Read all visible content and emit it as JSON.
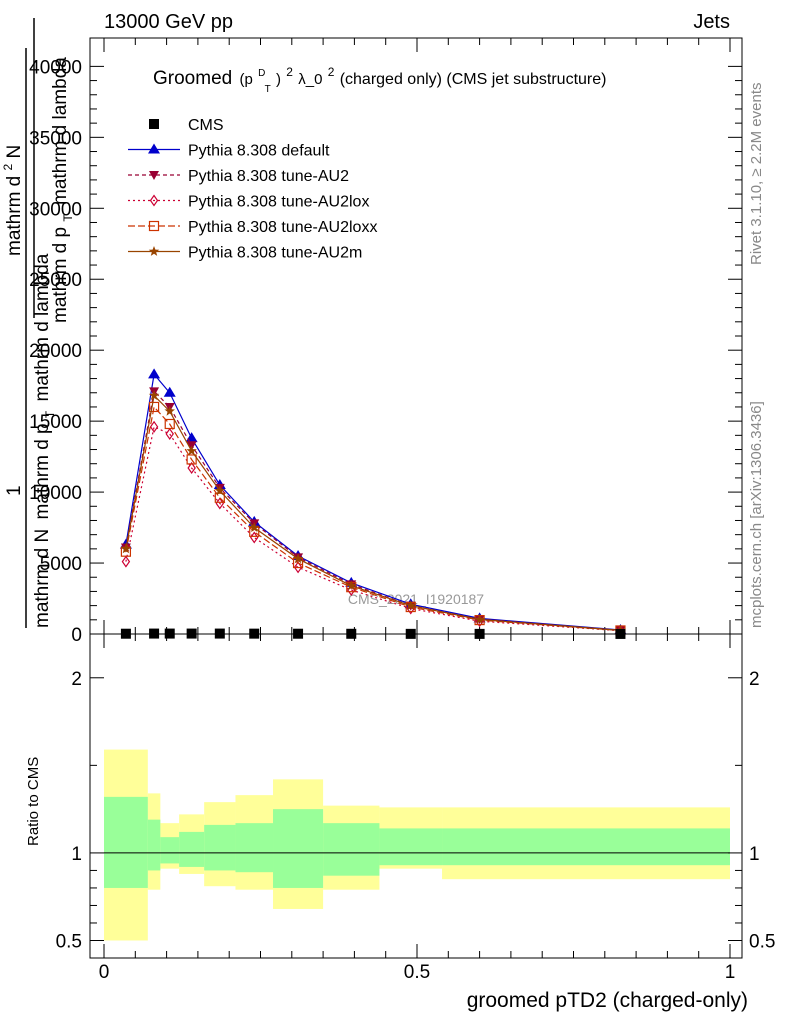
{
  "header": {
    "left": "13000 GeV pp",
    "right": "Jets"
  },
  "side_text": {
    "rivet": "Rivet 3.1.10, ≥ 2.2M events",
    "mcplots": "mcplots.cern.ch [arXiv:1306.3436]"
  },
  "watermark": "CMS_2021_I1920187",
  "chart_data": [
    {
      "type": "line",
      "title": "Groomed (p_T^D)^2 λ_0^2  (charged only) (CMS jet substructure)",
      "title_parts": {
        "pre": "Groomed",
        "p": "(p",
        "sup1": "D",
        "sub1": "T",
        "close": ")",
        "sup2": "2",
        "lambda": " λ_0",
        "sup3": "2",
        "post": "  (charged only) (CMS jet substructure)"
      },
      "ylabel_lines": [
        "1",
        "mathrm d N mathrm d p_T mathrm d lambda",
        "mathrm d^2 N",
        "mathrm d p_T mathrm d lambda"
      ],
      "ylabel_pieces": {
        "one": "1",
        "den1": "mathrm d N",
        "den2": "mathrm d p",
        "den2_sub": "T",
        "den3": "mathrm d lambda",
        "num": "mathrm d",
        "num_sup": "2",
        "num2": "N",
        "den4": "mathrm d p",
        "den4_sub": "T",
        "den5": "mathrm d lambda"
      },
      "xlim": [
        0,
        1
      ],
      "ylim": [
        0,
        42000
      ],
      "yticks": [
        0,
        5000,
        10000,
        15000,
        20000,
        25000,
        30000,
        35000,
        40000
      ],
      "ytick_labels": [
        "0",
        "5000",
        "10000",
        "15000",
        "20000",
        "25000",
        "30000",
        "35000",
        "40000"
      ],
      "legend_position": "top-left",
      "x": [
        0.035,
        0.08,
        0.105,
        0.14,
        0.185,
        0.24,
        0.31,
        0.395,
        0.49,
        0.6,
        0.825
      ],
      "series": [
        {
          "name": "CMS",
          "color": "#000000",
          "marker": "square",
          "dash": "",
          "values": [
            20,
            30,
            30,
            30,
            30,
            25,
            20,
            15,
            10,
            8,
            5
          ]
        },
        {
          "name": "Pythia 8.308 default",
          "color": "#0000cc",
          "marker": "triangle-up",
          "dash": "",
          "values": [
            6300,
            18300,
            17000,
            13800,
            10500,
            7900,
            5500,
            3600,
            2100,
            1100,
            280
          ]
        },
        {
          "name": "Pythia 8.308 tune-AU2",
          "color": "#990033",
          "marker": "triangle-down",
          "dash": "4,3",
          "values": [
            6100,
            17100,
            16000,
            13300,
            10300,
            7800,
            5400,
            3500,
            2000,
            1050,
            260
          ]
        },
        {
          "name": "Pythia 8.308 tune-AU2lox",
          "color": "#cc0033",
          "marker": "diamond",
          "dash": "2,3",
          "values": [
            5100,
            14600,
            14100,
            11700,
            9200,
            6800,
            4700,
            3100,
            1800,
            900,
            230
          ]
        },
        {
          "name": "Pythia 8.308 tune-AU2loxx",
          "color": "#cc3300",
          "marker": "square-open",
          "dash": "7,3",
          "values": [
            5800,
            16000,
            14800,
            12300,
            9600,
            7200,
            5000,
            3300,
            1900,
            980,
            250
          ]
        },
        {
          "name": "Pythia 8.308 tune-AU2m",
          "color": "#994400",
          "marker": "star",
          "dash": "",
          "values": [
            6000,
            16800,
            15700,
            12900,
            10100,
            7500,
            5300,
            3400,
            2000,
            1020,
            255
          ]
        }
      ]
    },
    {
      "type": "area",
      "ylabel": "Ratio to CMS",
      "xlabel": "groomed pTD2 (charged-only)",
      "xlim": [
        0,
        1
      ],
      "ylim": [
        0.4,
        2.25
      ],
      "xticks": [
        0,
        0.5,
        1
      ],
      "xtick_labels": [
        "0",
        "0.5",
        "1"
      ],
      "yticks": [
        0.5,
        1,
        2
      ],
      "ytick_labels": [
        "0.5",
        "1",
        "2"
      ],
      "bin_edges": [
        0,
        0.07,
        0.09,
        0.12,
        0.16,
        0.21,
        0.27,
        0.35,
        0.44,
        0.54,
        1.0
      ],
      "yellow_upper": [
        1.59,
        1.34,
        1.17,
        1.22,
        1.29,
        1.33,
        1.42,
        1.27,
        1.26,
        1.26
      ],
      "yellow_lower": [
        0.5,
        0.79,
        0.91,
        0.88,
        0.81,
        0.79,
        0.68,
        0.79,
        0.91,
        0.85
      ],
      "green_upper": [
        1.32,
        1.19,
        1.09,
        1.12,
        1.16,
        1.17,
        1.25,
        1.17,
        1.14,
        1.14
      ],
      "green_lower": [
        0.8,
        0.9,
        0.94,
        0.92,
        0.9,
        0.89,
        0.8,
        0.87,
        0.93,
        0.93
      ],
      "colors": {
        "yellow": "#ffff99",
        "green": "#99ff99"
      }
    }
  ]
}
